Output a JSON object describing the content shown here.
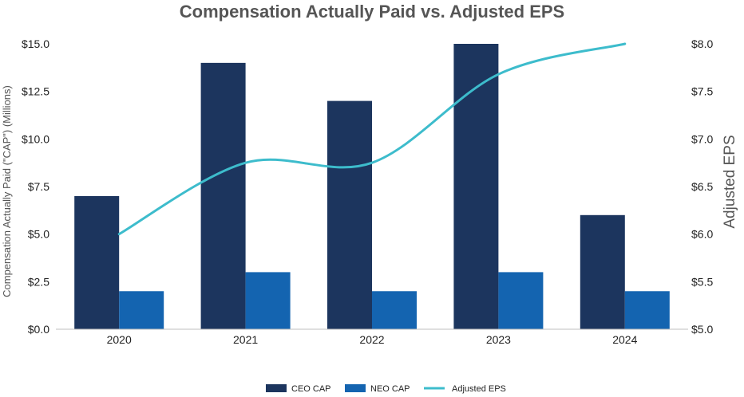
{
  "chart_data": {
    "type": "bar",
    "title": "Compensation Actually Paid vs. Adjusted EPS",
    "categories": [
      "2020",
      "2021",
      "2022",
      "2023",
      "2024"
    ],
    "ylabel": "Compensation Actually Paid (\"CAP\") (Millions)",
    "ylabel_right": "Adjusted EPS",
    "ylim": [
      0,
      15
    ],
    "ylim_right": [
      5,
      8
    ],
    "yticks": [
      "$0.0",
      "$2.5",
      "$5.0",
      "$7.5",
      "$10.0",
      "$12.5",
      "$15.0"
    ],
    "yticks_right": [
      "$5.0",
      "$5.5",
      "$6.0",
      "$6.5",
      "$7.0",
      "$7.5",
      "$8.0"
    ],
    "series": [
      {
        "name": "CEO CAP",
        "type": "bar",
        "axis": "left",
        "color": "#1c355e",
        "values": [
          7.0,
          14.0,
          12.0,
          15.0,
          6.0
        ]
      },
      {
        "name": "NEO CAP",
        "type": "bar",
        "axis": "left",
        "color": "#1464b0",
        "values": [
          2.0,
          3.0,
          2.0,
          3.0,
          2.0
        ]
      },
      {
        "name": "Adjusted EPS",
        "type": "line",
        "axis": "right",
        "color": "#3dbccc",
        "values": [
          6.0,
          6.75,
          6.75,
          7.68,
          8.0
        ]
      }
    ],
    "legend": "bottom",
    "grid": false
  }
}
